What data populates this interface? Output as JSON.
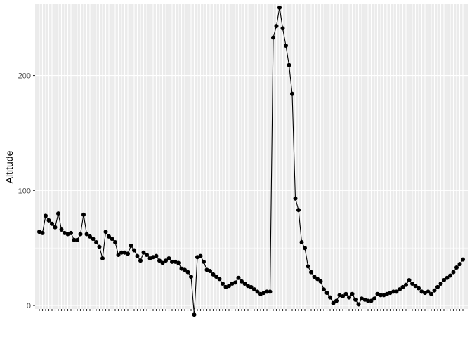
{
  "chart_data": {
    "type": "line",
    "markers": true,
    "title": "",
    "xlabel": "",
    "ylabel": "Altitude",
    "ylim": [
      -3,
      262
    ],
    "y_ticks": [
      0,
      100,
      200
    ],
    "x_tick_labels_visible": false,
    "grid": true,
    "background": "#ebebeb",
    "grid_color": "#ffffff",
    "line_color": "#000000",
    "point_color": "#000000",
    "series": [
      {
        "values": [
          64,
          63,
          78,
          74,
          71,
          68,
          80,
          66,
          63,
          62,
          63,
          57,
          57,
          62,
          79,
          62,
          60,
          58,
          55,
          51,
          41,
          64,
          60,
          58,
          55,
          44,
          46,
          46,
          45,
          52,
          48,
          43,
          39,
          46,
          44,
          41,
          42,
          43,
          39,
          37,
          39,
          41,
          38,
          38,
          37,
          32,
          31,
          29,
          25,
          -8,
          42,
          43,
          38,
          31,
          30,
          27,
          25,
          23,
          19,
          16,
          17,
          19,
          20,
          24,
          21,
          19,
          17,
          16,
          14,
          12,
          10,
          11,
          12,
          12,
          233,
          243,
          259,
          241,
          226,
          209,
          184,
          93,
          83,
          55,
          50,
          34,
          29,
          25,
          23,
          21,
          14,
          11,
          7,
          2,
          4,
          9,
          8,
          10,
          7,
          10,
          5,
          1,
          6,
          5,
          4,
          4,
          6,
          10,
          9,
          9,
          10,
          11,
          12,
          12,
          14,
          16,
          18,
          22,
          19,
          17,
          15,
          12,
          11,
          12,
          10,
          13,
          16,
          19,
          22,
          24,
          26,
          29,
          33,
          36,
          40
        ]
      }
    ]
  }
}
